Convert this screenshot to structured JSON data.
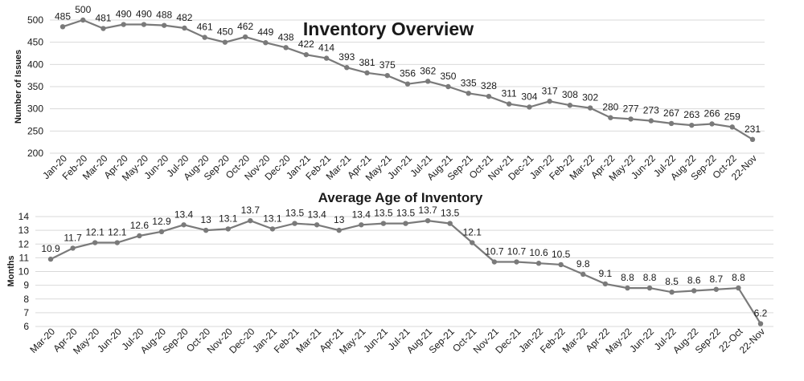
{
  "chart_data": [
    {
      "type": "line",
      "title": "Inventory Overview",
      "ylabel": "Number of Issues",
      "xlabel": "",
      "ylim": [
        200,
        500
      ],
      "yticks": [
        200,
        250,
        300,
        350,
        400,
        450,
        500
      ],
      "grid": true,
      "categories": [
        "Jan-20",
        "Feb-20",
        "Mar-20",
        "Apr-20",
        "May-20",
        "Jun-20",
        "Jul-20",
        "Aug-20",
        "Sep-20",
        "Oct-20",
        "Nov-20",
        "Dec-20",
        "Jan-21",
        "Feb-21",
        "Mar-21",
        "Apr-21",
        "May-21",
        "Jun-21",
        "Jul-21",
        "Aug-21",
        "Sep-21",
        "Oct-21",
        "Nov-21",
        "Dec-21",
        "Jan-22",
        "Feb-22",
        "Mar-22",
        "Apr-22",
        "May-22",
        "Jun-22",
        "Jul-22",
        "Aug-22",
        "Sep-22",
        "Oct-22",
        "22-Nov"
      ],
      "values": [
        485,
        500,
        481,
        490,
        490,
        488,
        482,
        461,
        450,
        462,
        449,
        438,
        422,
        414,
        393,
        381,
        375,
        356,
        362,
        350,
        335,
        328,
        311,
        304,
        317,
        308,
        302,
        280,
        277,
        273,
        267,
        263,
        266,
        259,
        231
      ],
      "color": "#7a7a7a"
    },
    {
      "type": "line",
      "title": "Average Age of Inventory",
      "ylabel": "Months",
      "xlabel": "",
      "ylim": [
        6,
        14
      ],
      "yticks": [
        6,
        7,
        8,
        9,
        10,
        11,
        12,
        13,
        14
      ],
      "grid": true,
      "categories": [
        "Mar-20",
        "Apr-20",
        "May-20",
        "Jun-20",
        "Jul-20",
        "Aug-20",
        "Sep-20",
        "Oct-20",
        "Nov-20",
        "Dec-20",
        "Jan-21",
        "Feb-21",
        "Mar-21",
        "Apr-21",
        "May-21",
        "Jun-21",
        "Jul-21",
        "Aug-21",
        "Sep-21",
        "Oct-21",
        "Nov-21",
        "Dec-21",
        "Jan-22",
        "Feb-22",
        "Mar-22",
        "Apr-22",
        "May-22",
        "Jun-22",
        "Jul-22",
        "Aug-22",
        "Sep-22",
        "22-Oct",
        "22-Nov"
      ],
      "values": [
        10.9,
        11.7,
        12.1,
        12.1,
        12.6,
        12.9,
        13.4,
        13,
        13.1,
        13.7,
        13.1,
        13.5,
        13.4,
        13,
        13.4,
        13.5,
        13.5,
        13.7,
        13.5,
        12.1,
        10.7,
        10.7,
        10.6,
        10.5,
        9.8,
        9.1,
        8.8,
        8.8,
        8.5,
        8.6,
        8.7,
        8.8,
        6.2
      ],
      "color": "#7a7a7a"
    }
  ]
}
